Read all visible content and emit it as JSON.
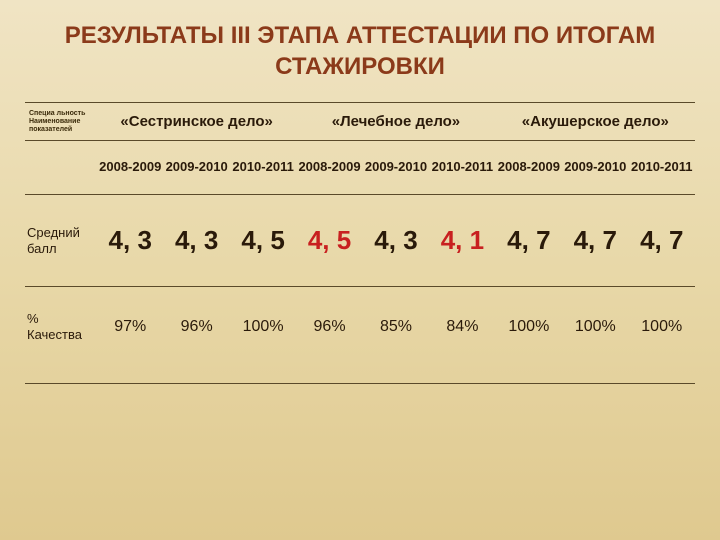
{
  "title": "РЕЗУЛЬТАТЫ III ЭТАПА АТТЕСТАЦИИ ПО ИТОГАМ СТАЖИРОВКИ",
  "corner": "Специа льность Наименование показателей",
  "specialties": [
    "«Сестринское дело»",
    "«Лечебное дело»",
    "«Акушерское дело»"
  ],
  "years": [
    "2008-2009",
    "2009-2010",
    "2010-2011",
    "2008-2009",
    "2009-2010",
    "2010-2011",
    "2008-2009",
    "2009-2010",
    "2010-2011"
  ],
  "rows": [
    {
      "label": "Средний балл",
      "class": "avg-row",
      "values": [
        {
          "v": "4, 3",
          "red": false
        },
        {
          "v": "4, 3",
          "red": false
        },
        {
          "v": "4, 5",
          "red": false
        },
        {
          "v": "4, 5",
          "red": true
        },
        {
          "v": "4, 3",
          "red": false
        },
        {
          "v": "4, 1",
          "red": true
        },
        {
          "v": "4, 7",
          "red": false
        },
        {
          "v": "4, 7",
          "red": false
        },
        {
          "v": "4, 7",
          "red": false
        }
      ]
    },
    {
      "label": "% Качества",
      "class": "pct-row",
      "values": [
        {
          "v": "97%"
        },
        {
          "v": "96%"
        },
        {
          "v": "100%"
        },
        {
          "v": "96%"
        },
        {
          "v": "85%"
        },
        {
          "v": "84%"
        },
        {
          "v": "100%"
        },
        {
          "v": "100%"
        },
        {
          "v": "100%"
        }
      ]
    }
  ]
}
